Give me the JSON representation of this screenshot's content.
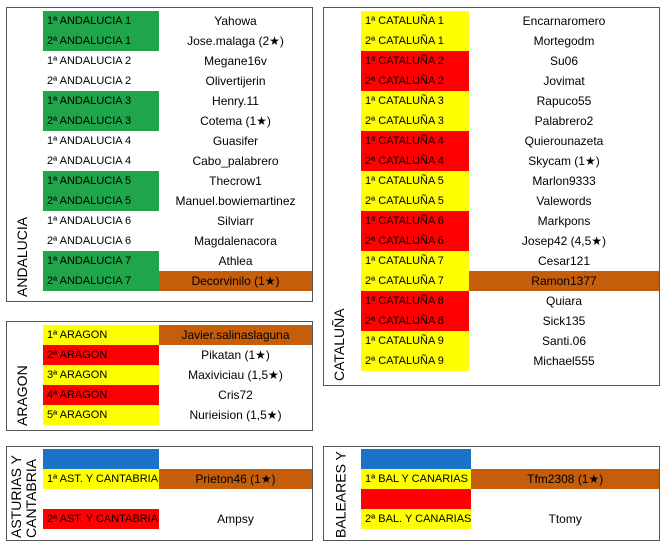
{
  "colors": {
    "green": "#1fa64a",
    "yellow": "#ffff00",
    "red": "#ff0000",
    "orange": "#c45e0a",
    "blue": "#1a72c9"
  },
  "andalucia": {
    "title": "ANDALUCIA",
    "rows": [
      {
        "group": "1ª ANDALUCIA 1",
        "player": "Yahowa",
        "c1": "green",
        "c2": "white"
      },
      {
        "group": "2ª ANDALUCIA 1",
        "player": "Jose.malaga (2★)",
        "c1": "green",
        "c2": "white"
      },
      {
        "group": "1ª ANDALUCIA 2",
        "player": "Megane16v",
        "c1": "white",
        "c2": "white"
      },
      {
        "group": "2ª ANDALUCIA 2",
        "player": "Olivertijerin",
        "c1": "white",
        "c2": "white"
      },
      {
        "group": "1ª ANDALUCIA 3",
        "player": "Henry.11",
        "c1": "green",
        "c2": "white"
      },
      {
        "group": "2ª ANDALUCIA 3",
        "player": "Cotema (1★)",
        "c1": "green",
        "c2": "white"
      },
      {
        "group": "1ª ANDALUCIA 4",
        "player": "Guasifer",
        "c1": "white",
        "c2": "white"
      },
      {
        "group": "2ª ANDALUCIA 4",
        "player": "Cabo_palabrero",
        "c1": "white",
        "c2": "white"
      },
      {
        "group": "1ª ANDALUCIA 5",
        "player": "Thecrow1",
        "c1": "green",
        "c2": "white"
      },
      {
        "group": "2ª ANDALUCIA 5",
        "player": "Manuel.bowiemartinez",
        "c1": "green",
        "c2": "white"
      },
      {
        "group": "1ª ANDALUCIA 6",
        "player": "Silviarr",
        "c1": "white",
        "c2": "white"
      },
      {
        "group": "2ª ANDALUCIA 6",
        "player": "Magdalenacora",
        "c1": "white",
        "c2": "white"
      },
      {
        "group": "1ª ANDALUCIA 7",
        "player": "Athlea",
        "c1": "green",
        "c2": "white"
      },
      {
        "group": "2ª ANDALUCIA 7",
        "player": "Decorvinilo (1★)",
        "c1": "green",
        "c2": "orange"
      }
    ]
  },
  "aragon": {
    "title": "ARAGON",
    "rows": [
      {
        "group": "1ª ARAGON",
        "player": "Javier.salinaslaguna",
        "c1": "yellow",
        "c2": "orange"
      },
      {
        "group": "2ª ARAGON",
        "player": "Pikatan (1★)",
        "c1": "red",
        "c2": "white"
      },
      {
        "group": "3ª ARAGON",
        "player": "Maxiviciau (1,5★)",
        "c1": "yellow",
        "c2": "white"
      },
      {
        "group": "4ª ARAGON",
        "player": "Cris72",
        "c1": "red",
        "c2": "white"
      },
      {
        "group": "5ª ARAGON",
        "player": "Nurieision (1,5★)",
        "c1": "yellow",
        "c2": "white"
      }
    ]
  },
  "asturias": {
    "title": "ASTURIAS Y CANTABRIA",
    "rows": [
      {
        "group": "",
        "player": "",
        "c1": "blue",
        "c2": "white"
      },
      {
        "group": "1ª AST. Y CANTABRIA",
        "player": "Prieton46 (1★)",
        "c1": "yellow",
        "c2": "orange"
      },
      {
        "group": "",
        "player": "",
        "c1": "white",
        "c2": "white"
      },
      {
        "group": "2ª AST. Y CANTABRIA",
        "player": "Ampsy",
        "c1": "red",
        "c2": "white"
      }
    ]
  },
  "cataluna": {
    "title": "CATALUÑA",
    "rows": [
      {
        "group": "1ª CATALUÑA 1",
        "player": "Encarnaromero",
        "c1": "yellow",
        "c2": "white"
      },
      {
        "group": "2ª CATALUÑA 1",
        "player": "Mortegodm",
        "c1": "yellow",
        "c2": "white"
      },
      {
        "group": "1ª CATALUÑA 2",
        "player": "Su06",
        "c1": "red",
        "c2": "white"
      },
      {
        "group": "2ª CATALUÑA 2",
        "player": "Jovimat",
        "c1": "red",
        "c2": "white"
      },
      {
        "group": "1ª CATALUÑA 3",
        "player": "Rapuco55",
        "c1": "yellow",
        "c2": "white"
      },
      {
        "group": "2ª CATALUÑA 3",
        "player": "Palabrero2",
        "c1": "yellow",
        "c2": "white"
      },
      {
        "group": "1ª CATALUÑA 4",
        "player": "Quierounazeta",
        "c1": "red",
        "c2": "white"
      },
      {
        "group": "2ª CATALUÑA 4",
        "player": "Skycam (1★)",
        "c1": "red",
        "c2": "white"
      },
      {
        "group": "1ª CATALUÑA 5",
        "player": "Marlon9333",
        "c1": "yellow",
        "c2": "white"
      },
      {
        "group": "2ª CATALUÑA 5",
        "player": "Valewords",
        "c1": "yellow",
        "c2": "white"
      },
      {
        "group": "1ª CATALUÑA 6",
        "player": "Markpons",
        "c1": "red",
        "c2": "white"
      },
      {
        "group": "2ª CATALUÑA 6",
        "player": "Josep42 (4,5★)",
        "c1": "red",
        "c2": "white"
      },
      {
        "group": "1ª CATALUÑA 7",
        "player": "Cesar121",
        "c1": "yellow",
        "c2": "white"
      },
      {
        "group": "2ª CATALUÑA 7",
        "player": "Ramon1377",
        "c1": "yellow",
        "c2": "orange"
      },
      {
        "group": "1ª CATALUÑA 8",
        "player": "Quiara",
        "c1": "red",
        "c2": "white"
      },
      {
        "group": "2ª CATALUÑA 8",
        "player": "Sick135",
        "c1": "red",
        "c2": "white"
      },
      {
        "group": "1ª CATALUÑA 9",
        "player": "Santi.06",
        "c1": "yellow",
        "c2": "white"
      },
      {
        "group": "2ª CATALUÑA 9",
        "player": "Michael555",
        "c1": "yellow",
        "c2": "white"
      }
    ]
  },
  "baleares": {
    "title": "BALEARES Y",
    "rows": [
      {
        "group": "",
        "player": "",
        "c1": "blue",
        "c2": "white"
      },
      {
        "group": "1ª BAL Y CANARIAS",
        "player": "Tfm2308 (1★)",
        "c1": "yellow",
        "c2": "orange"
      },
      {
        "group": "",
        "player": "",
        "c1": "red",
        "c2": "white"
      },
      {
        "group": "2ª BAL. Y CANARIAS",
        "player": "Ttomy",
        "c1": "yellow",
        "c2": "white"
      }
    ]
  }
}
